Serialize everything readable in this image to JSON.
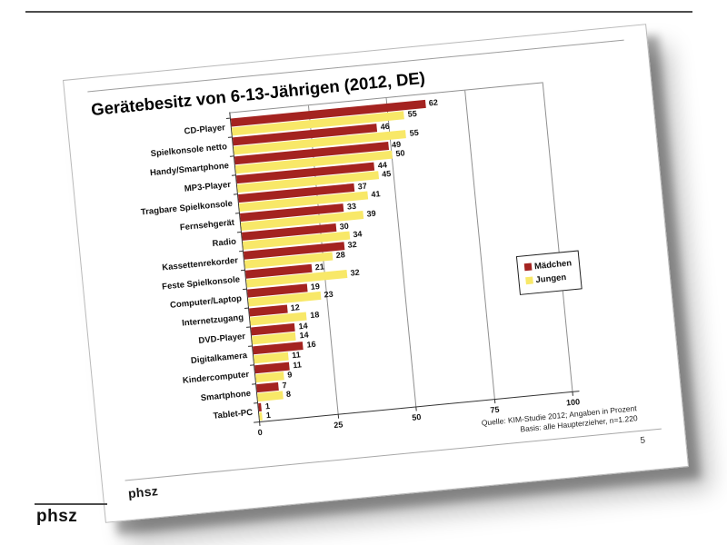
{
  "outer": {
    "brand": "phsz"
  },
  "slide": {
    "title": "Gerätebesitz von 6-13-Jährigen (2012, DE)",
    "source_line1": "Quelle: KIM-Studie 2012; Angaben in Prozent",
    "source_line2": "Basis: alle Haupterzieher, n=1.220",
    "brand": "phsz",
    "page_number": "5"
  },
  "chart_data": {
    "type": "bar",
    "orientation": "horizontal",
    "title": "Gerätebesitz von 6-13-Jährigen (2012, DE)",
    "unit": "Prozent",
    "categories": [
      "CD-Player",
      "Spielkonsole netto",
      "Handy/Smartphone",
      "MP3-Player",
      "Tragbare Spielkonsole",
      "Fernsehgerät",
      "Radio",
      "Kassettenrekorder",
      "Feste Spielkonsole",
      "Computer/Laptop",
      "Internetzugang",
      "DVD-Player",
      "Digitalkamera",
      "Kindercomputer",
      "Smartphone",
      "Tablet-PC"
    ],
    "series": [
      {
        "name": "Mädchen",
        "color": "#A42320",
        "values": [
          62,
          46,
          49,
          44,
          37,
          33,
          30,
          32,
          21,
          19,
          12,
          14,
          16,
          11,
          7,
          1
        ]
      },
      {
        "name": "Jungen",
        "color": "#F8E868",
        "values": [
          55,
          55,
          50,
          45,
          41,
          39,
          34,
          28,
          32,
          23,
          18,
          14,
          11,
          9,
          8,
          1
        ]
      }
    ],
    "xlim": [
      0,
      100
    ],
    "x_ticks": [
      0,
      25,
      50,
      75,
      100
    ],
    "grid": "vertical",
    "legend_position": "middle-right",
    "value_labels": true
  }
}
